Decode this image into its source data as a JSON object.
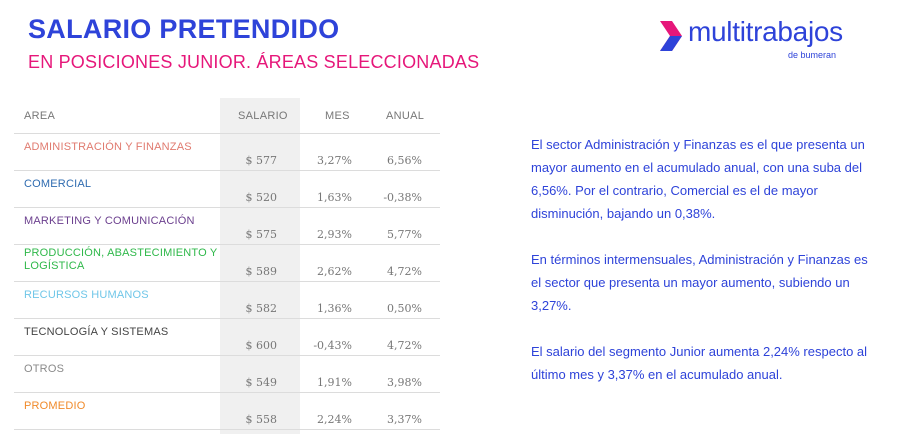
{
  "header": {
    "title": "SALARIO PRETENDIDO",
    "subtitle": "EN POSICIONES JUNIOR. ÁREAS SELECCIONADAS"
  },
  "logo": {
    "wordmark": "multitrabajos",
    "tagline": "de bumeran",
    "color": "#2e43d9",
    "mark_colors": [
      "#e6177a",
      "#2e43d9"
    ]
  },
  "table": {
    "columns": [
      "AREA",
      "SALARIO",
      "MES",
      "ANUAL"
    ],
    "rows": [
      {
        "area": "ADMINISTRACIÓN Y FINANZAS",
        "color": "#e07a6f",
        "salario": "$ 577",
        "mes": "3,27%",
        "anual": "6,56%"
      },
      {
        "area": "COMERCIAL",
        "color": "#2e6bb0",
        "salario": "$ 520",
        "mes": "1,63%",
        "anual": "-0,38%"
      },
      {
        "area": "MARKETING Y COMUNICACIÓN",
        "color": "#6b3f8e",
        "salario": "$ 575",
        "mes": "2,93%",
        "anual": "5,77%"
      },
      {
        "area": "PRODUCCIÓN, ABASTECIMIENTO Y LOGÍSTICA",
        "color": "#2fb84a",
        "salario": "$ 589",
        "mes": "2,62%",
        "anual": "4,72%"
      },
      {
        "area": "RECURSOS HUMANOS",
        "color": "#6fc6e8",
        "salario": "$ 582",
        "mes": "1,36%",
        "anual": "0,50%"
      },
      {
        "area": "TECNOLOGÍA Y SISTEMAS",
        "color": "#444444",
        "salario": "$ 600",
        "mes": "-0,43%",
        "anual": "4,72%"
      },
      {
        "area": "OTROS",
        "color": "#8a8a8a",
        "salario": "$ 549",
        "mes": "1,91%",
        "anual": "3,98%"
      },
      {
        "area": "PROMEDIO",
        "color": "#f08a2a",
        "salario": "$ 558",
        "mes": "2,24%",
        "anual": "3,37%"
      }
    ]
  },
  "body_text": {
    "p1": "El sector Administración y Finanzas es el que presenta un mayor aumento en el acumulado anual, con una suba del 6,56%. Por el contrario, Comercial es el de mayor disminución, bajando un 0,38%.",
    "p2": "En términos intermensuales, Administración y Finanzas es el sector que presenta un mayor aumento, subiendo un 3,27%.",
    "p3": "El salario del segmento Junior aumenta 2,24% respecto al último mes y 3,37% en el acumulado anual."
  }
}
